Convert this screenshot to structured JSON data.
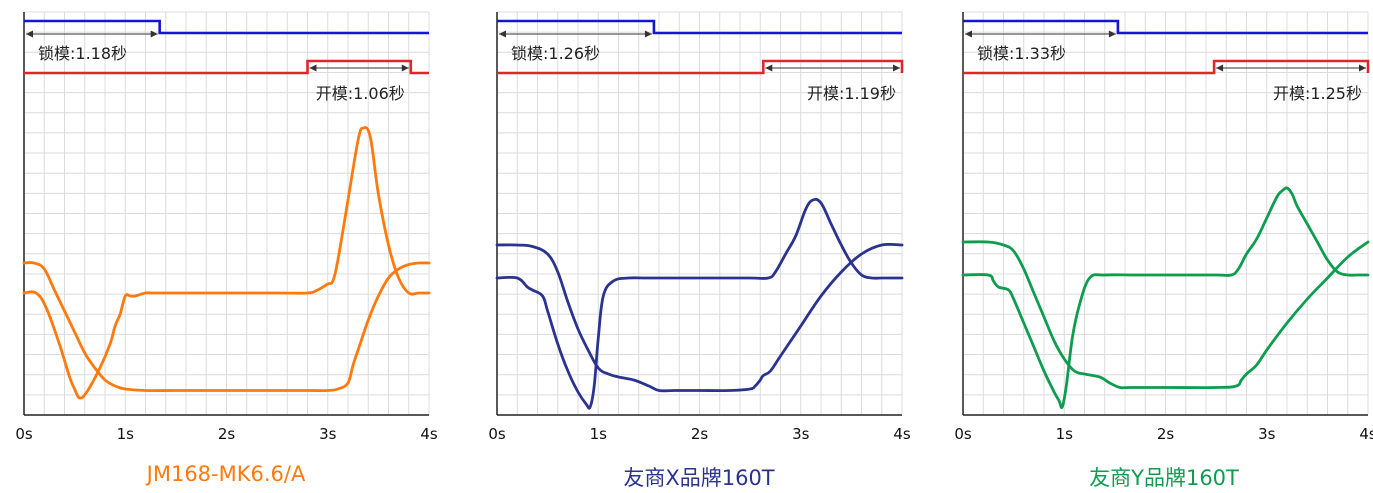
{
  "colors": {
    "clamp_signal": "#1515d8",
    "open_signal": "#e0262d",
    "grid": "#dcdcdc",
    "axis": "#222222"
  },
  "chart_data": [
    {
      "type": "line",
      "title": "JM168-MK6.6/A",
      "title_color": "#ff7a0e",
      "series_color": "#ff7a0e",
      "x_ticks": [
        "0s",
        "1s",
        "2s",
        "3s",
        "4s"
      ],
      "xlim": [
        0,
        4
      ],
      "ylim": [
        0,
        100
      ],
      "grid": true,
      "clamp": {
        "label": "锁模:1.18秒",
        "start": 0,
        "end": 1.34
      },
      "open": {
        "label": "开模:1.06秒",
        "start": 2.8,
        "end": 3.82
      },
      "series": [
        {
          "x": [
            0,
            0.12,
            0.22,
            0.35,
            0.45,
            0.5,
            0.55,
            0.62,
            0.75,
            0.85,
            0.9,
            0.95,
            1.0,
            1.05,
            1.1,
            1.2,
            1.3,
            1.6,
            2.0,
            2.5,
            2.8,
            2.9,
            3.0,
            3.05,
            3.1,
            3.2,
            3.3,
            3.35,
            3.42,
            3.5,
            3.6,
            3.7,
            3.8,
            3.9,
            4.0
          ],
          "y": [
            39,
            39,
            34,
            22,
            11,
            7,
            4,
            6,
            14,
            22,
            28,
            32,
            38,
            38,
            38,
            39,
            39,
            39,
            39,
            39,
            39,
            40,
            42,
            43,
            50,
            70,
            90,
            94,
            91,
            72,
            55,
            44,
            39,
            39,
            39
          ]
        },
        {
          "x": [
            0,
            0.1,
            0.2,
            0.3,
            0.4,
            0.5,
            0.6,
            0.7,
            0.8,
            0.9,
            1.0,
            1.2,
            1.5,
            2.0,
            2.5,
            2.8,
            3.0,
            3.1,
            3.2,
            3.25,
            3.3,
            3.4,
            3.5,
            3.6,
            3.7,
            3.8,
            3.9,
            4.0
          ],
          "y": [
            49,
            49,
            47,
            40,
            33,
            26,
            19,
            14,
            10,
            8,
            7,
            6.5,
            6.5,
            6.5,
            6.5,
            6.5,
            6.5,
            7,
            9,
            15,
            20,
            30,
            38,
            44,
            47,
            48.5,
            49,
            49
          ]
        }
      ]
    },
    {
      "type": "line",
      "title": "友商X品牌160T",
      "title_color": "#2b3390",
      "series_color": "#2b3390",
      "x_ticks": [
        "0s",
        "1s",
        "2s",
        "3s",
        "4s"
      ],
      "xlim": [
        0,
        4
      ],
      "ylim": [
        0,
        100
      ],
      "grid": true,
      "clamp": {
        "label": "锁模:1.26秒",
        "start": 0,
        "end": 1.55
      },
      "open": {
        "label": "开模:1.19秒",
        "start": 2.63,
        "end": 4.0
      },
      "series": [
        {
          "x": [
            0,
            0.2,
            0.3,
            0.35,
            0.45,
            0.5,
            0.6,
            0.7,
            0.8,
            0.88,
            0.92,
            0.96,
            1.0,
            1.05,
            1.15,
            1.3,
            1.5,
            2.0,
            2.5,
            2.68,
            2.75,
            2.85,
            2.95,
            3.05,
            3.12,
            3.2,
            3.3,
            3.4,
            3.5,
            3.6,
            3.7,
            3.8,
            3.9,
            4.0
          ],
          "y": [
            44,
            44,
            41,
            40,
            38,
            33,
            22,
            13,
            6,
            2,
            1,
            8,
            24,
            38,
            43,
            44,
            44,
            44,
            44,
            44,
            46,
            52,
            58,
            67,
            70,
            69,
            62,
            55,
            49,
            45,
            44,
            44,
            44,
            44
          ]
        },
        {
          "x": [
            0,
            0.2,
            0.35,
            0.5,
            0.6,
            0.7,
            0.8,
            0.9,
            1.0,
            1.1,
            1.2,
            1.35,
            1.5,
            1.6,
            1.75,
            2.0,
            2.3,
            2.5,
            2.55,
            2.6,
            2.63,
            2.7,
            2.8,
            3.0,
            3.2,
            3.4,
            3.6,
            3.8,
            4.0
          ],
          "y": [
            55,
            55,
            54.5,
            52,
            46,
            36,
            27,
            20,
            14,
            12,
            11,
            10,
            8,
            6.5,
            6.5,
            6.5,
            6.5,
            7,
            8,
            10,
            11.5,
            13,
            18,
            28,
            38,
            46,
            52,
            55,
            55
          ]
        }
      ]
    },
    {
      "type": "line",
      "title": "友商Y品牌160T",
      "title_color": "#0e9c4e",
      "series_color": "#0e9c4e",
      "x_ticks": [
        "0s",
        "1s",
        "2s",
        "3s",
        "4s"
      ],
      "xlim": [
        0,
        4
      ],
      "ylim": [
        0,
        100
      ],
      "grid": true,
      "clamp": {
        "label": "锁模:1.33秒",
        "start": 0,
        "end": 1.53
      },
      "open": {
        "label": "开模:1.25秒",
        "start": 2.48,
        "end": 4.0
      },
      "series": [
        {
          "x": [
            0,
            0.25,
            0.3,
            0.35,
            0.45,
            0.5,
            0.6,
            0.7,
            0.8,
            0.9,
            0.95,
            0.98,
            1.02,
            1.08,
            1.15,
            1.25,
            1.4,
            1.7,
            2.0,
            2.5,
            2.65,
            2.72,
            2.8,
            2.9,
            3.0,
            3.1,
            3.15,
            3.2,
            3.25,
            3.3,
            3.4,
            3.5,
            3.6,
            3.7,
            3.8,
            3.9,
            4.0
          ],
          "y": [
            45,
            45,
            43,
            41,
            40,
            37,
            29,
            21,
            13,
            6,
            3,
            1,
            8,
            24,
            35,
            44,
            45,
            45,
            45,
            45,
            45,
            47,
            52,
            57,
            64,
            71,
            73,
            74,
            72,
            68,
            62,
            56,
            50,
            46,
            45,
            45,
            45
          ]
        },
        {
          "x": [
            0,
            0.25,
            0.4,
            0.5,
            0.6,
            0.7,
            0.8,
            0.9,
            1.0,
            1.1,
            1.2,
            1.35,
            1.45,
            1.55,
            1.65,
            2.0,
            2.5,
            2.7,
            2.75,
            2.8,
            2.9,
            3.0,
            3.2,
            3.4,
            3.6,
            3.8,
            4.0
          ],
          "y": [
            56,
            56,
            55,
            53,
            47,
            39,
            31,
            23,
            17,
            13,
            12,
            11,
            9,
            7.5,
            7.5,
            7.5,
            7.5,
            8,
            10,
            12,
            15,
            20,
            29,
            37,
            44,
            51,
            56
          ]
        }
      ]
    }
  ]
}
